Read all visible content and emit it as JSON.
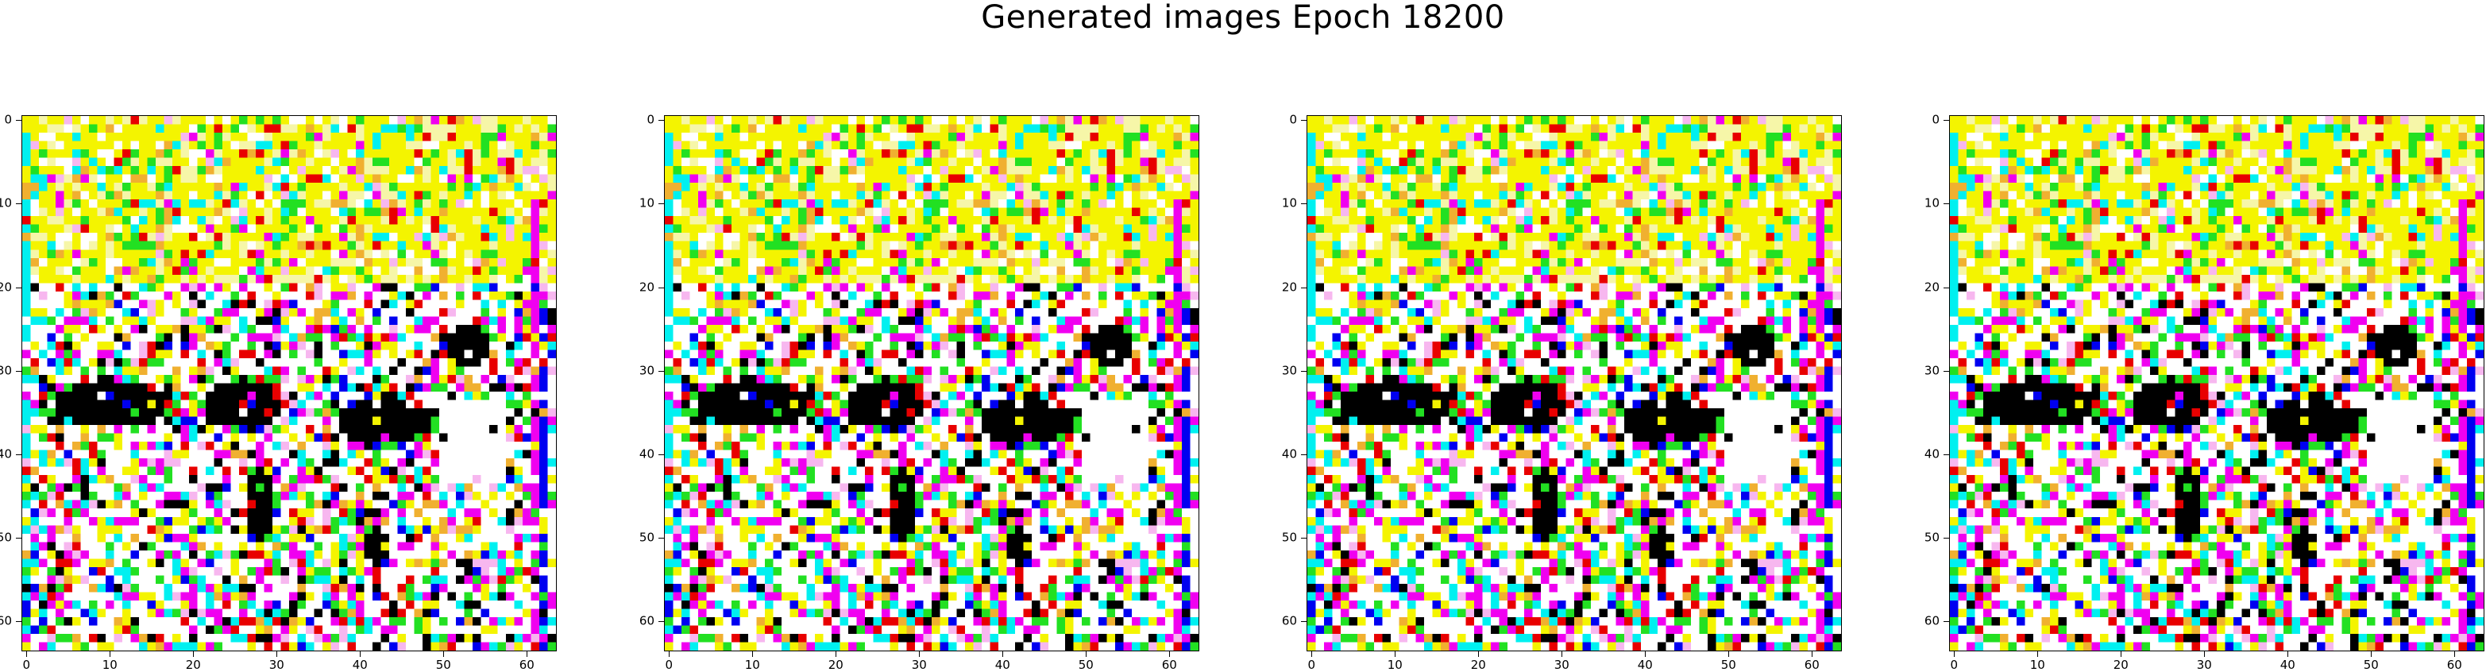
{
  "figure": {
    "title": "Generated images Epoch 18200"
  },
  "panels": [
    {
      "name": "generated-image-1",
      "xticks": [
        "0",
        "10",
        "20",
        "30",
        "40",
        "50",
        "60"
      ],
      "yticks": [
        "0",
        "10",
        "20",
        "30",
        "40",
        "50",
        "60"
      ]
    },
    {
      "name": "generated-image-2",
      "xticks": [
        "0",
        "10",
        "20",
        "30",
        "40",
        "50",
        "60"
      ],
      "yticks": [
        "0",
        "10",
        "20",
        "30",
        "40",
        "50",
        "60"
      ]
    },
    {
      "name": "generated-image-3",
      "xticks": [
        "0",
        "10",
        "20",
        "30",
        "40",
        "50",
        "60"
      ],
      "yticks": [
        "0",
        "10",
        "20",
        "30",
        "40",
        "50",
        "60"
      ]
    },
    {
      "name": "generated-image-4",
      "xticks": [
        "0",
        "10",
        "20",
        "30",
        "40",
        "50",
        "60"
      ],
      "yticks": [
        "0",
        "10",
        "20",
        "30",
        "40",
        "50",
        "60"
      ]
    }
  ],
  "image_grid": {
    "rows": 64,
    "cols": 64
  },
  "palette": {
    "yellow": "#f4f400",
    "pale_yellow": "#f6f6a8",
    "green": "#22e022",
    "cyan": "#00f0f0",
    "magenta": "#f000f0",
    "pink": "#f7b7ef",
    "black": "#000000",
    "red": "#e80000",
    "blue": "#0000f0",
    "white": "#ffffff",
    "orange": "#f0b030"
  }
}
